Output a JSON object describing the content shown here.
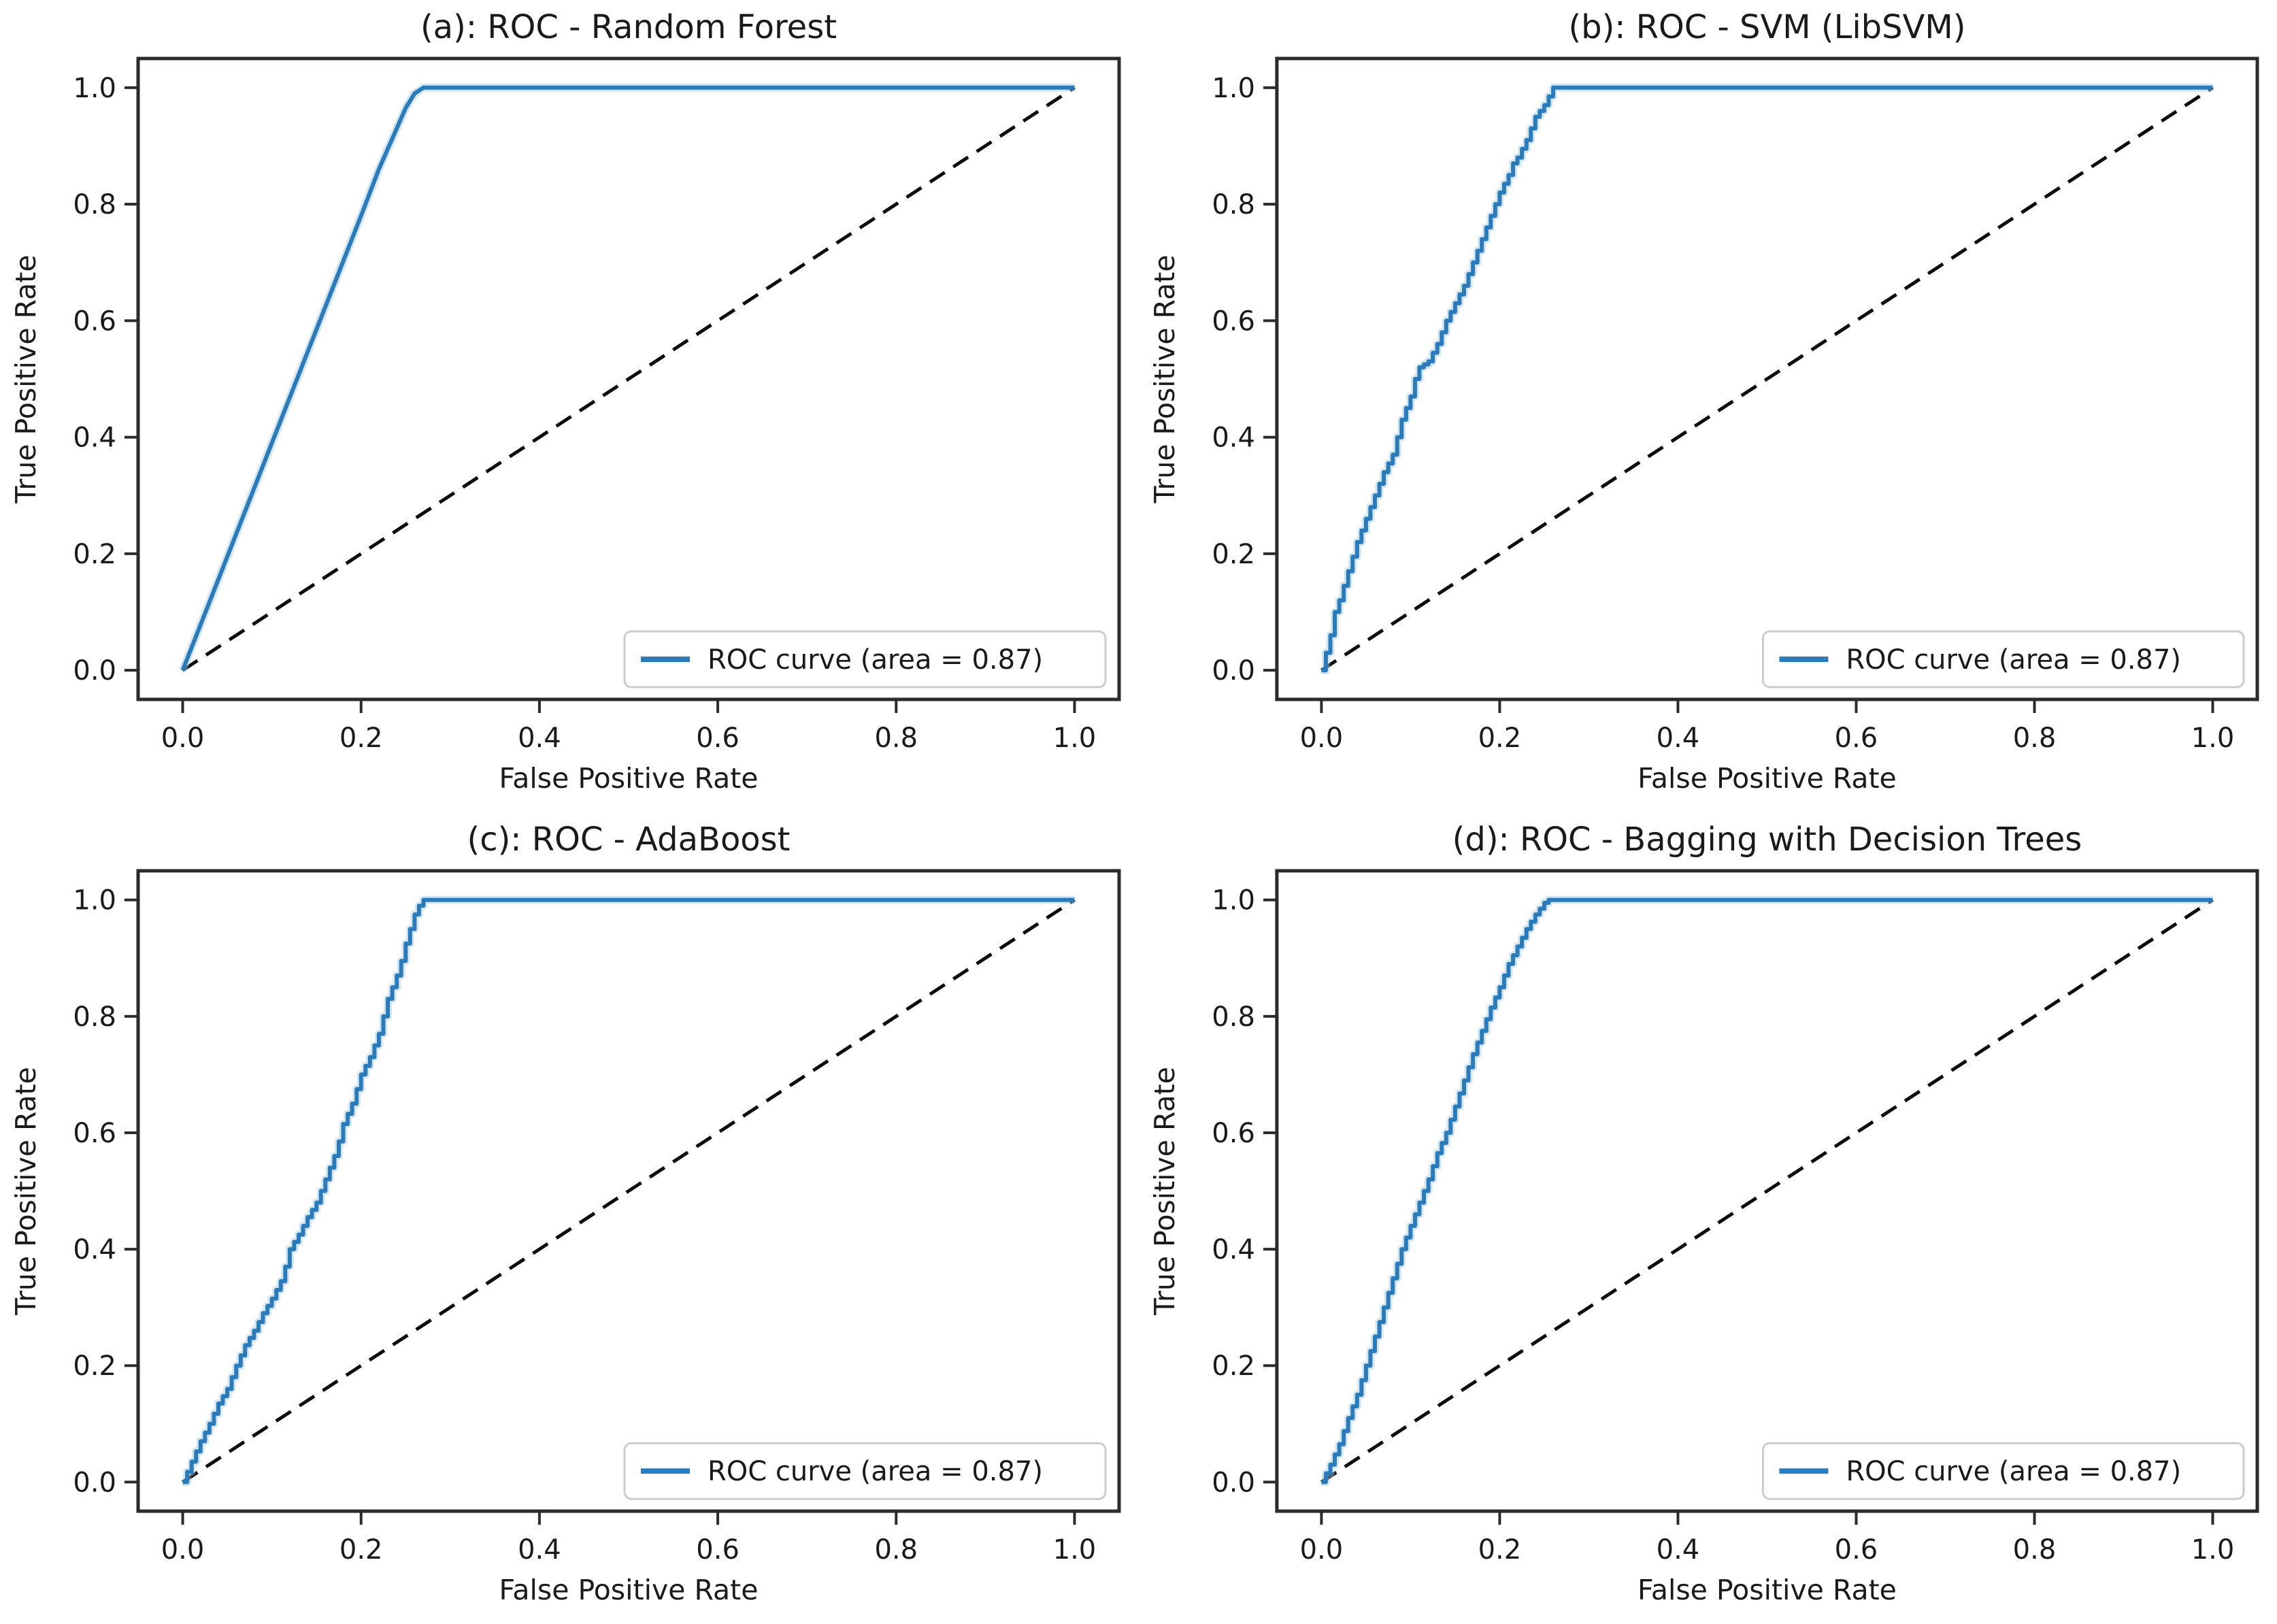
{
  "figure": {
    "background": "#ffffff",
    "rows": 2,
    "cols": 2
  },
  "style": {
    "curve_color": "#2b7bba",
    "curve_halo_color": "#9ec7e2",
    "diagonal_color": "#0d0d0d",
    "spine_color": "#2b2b2b",
    "tick_color": "#2b2b2b",
    "text_color": "#1a1a1a",
    "legend_border_color": "#cccccc",
    "legend_fill": "#ffffff"
  },
  "axes": {
    "xlabel": "False Positive Rate",
    "ylabel": "True Positive Rate",
    "xticks": [
      "0.0",
      "0.2",
      "0.4",
      "0.6",
      "0.8",
      "1.0"
    ],
    "yticks": [
      "0.0",
      "0.2",
      "0.4",
      "0.6",
      "0.8",
      "1.0"
    ],
    "tick_values": [
      0.0,
      0.2,
      0.4,
      0.6,
      0.8,
      1.0
    ],
    "xlim": [
      -0.05,
      1.05
    ],
    "ylim": [
      -0.05,
      1.05
    ],
    "grid": false,
    "legend_position": "lower right"
  },
  "chart_data": [
    {
      "id": "a",
      "type": "line",
      "title": "(a): ROC - Random Forest",
      "legend_label": "ROC curve (area = 0.87)",
      "auc": 0.87,
      "curve_style": "linear",
      "xlabel": "False Positive Rate",
      "ylabel": "True Positive Rate",
      "roc_points": [
        [
          0,
          0
        ],
        [
          0.05,
          0.195
        ],
        [
          0.1,
          0.39
        ],
        [
          0.15,
          0.585
        ],
        [
          0.2,
          0.78
        ],
        [
          0.22,
          0.86
        ],
        [
          0.24,
          0.93
        ],
        [
          0.25,
          0.965
        ],
        [
          0.26,
          0.99
        ],
        [
          0.27,
          1.0
        ],
        [
          1,
          1
        ]
      ],
      "diagonal": [
        [
          0,
          0
        ],
        [
          1,
          1
        ]
      ]
    },
    {
      "id": "b",
      "type": "line",
      "title": "(b): ROC - SVM (LibSVM)",
      "legend_label": "ROC curve (area = 0.87)",
      "auc": 0.87,
      "curve_style": "steps",
      "xlabel": "False Positive Rate",
      "ylabel": "True Positive Rate",
      "roc_points": [
        [
          0,
          0
        ],
        [
          0.005,
          0.03
        ],
        [
          0.01,
          0.06
        ],
        [
          0.015,
          0.1
        ],
        [
          0.02,
          0.12
        ],
        [
          0.03,
          0.17
        ],
        [
          0.04,
          0.22
        ],
        [
          0.05,
          0.26
        ],
        [
          0.055,
          0.28
        ],
        [
          0.06,
          0.3
        ],
        [
          0.07,
          0.34
        ],
        [
          0.08,
          0.37
        ],
        [
          0.09,
          0.43
        ],
        [
          0.1,
          0.47
        ],
        [
          0.105,
          0.5
        ],
        [
          0.11,
          0.52
        ],
        [
          0.12,
          0.53
        ],
        [
          0.13,
          0.56
        ],
        [
          0.14,
          0.6
        ],
        [
          0.15,
          0.63
        ],
        [
          0.16,
          0.66
        ],
        [
          0.17,
          0.7
        ],
        [
          0.18,
          0.74
        ],
        [
          0.19,
          0.78
        ],
        [
          0.2,
          0.82
        ],
        [
          0.21,
          0.85
        ],
        [
          0.215,
          0.87
        ],
        [
          0.22,
          0.88
        ],
        [
          0.23,
          0.91
        ],
        [
          0.24,
          0.95
        ],
        [
          0.25,
          0.97
        ],
        [
          0.255,
          0.985
        ],
        [
          0.26,
          1.0
        ],
        [
          1,
          1
        ]
      ],
      "diagonal": [
        [
          0,
          0
        ],
        [
          1,
          1
        ]
      ]
    },
    {
      "id": "c",
      "type": "line",
      "title": "(c): ROC - AdaBoost",
      "legend_label": "ROC curve (area = 0.87)",
      "auc": 0.87,
      "curve_style": "steps",
      "xlabel": "False Positive Rate",
      "ylabel": "True Positive Rate",
      "roc_points": [
        [
          0,
          0
        ],
        [
          0.01,
          0.035
        ],
        [
          0.02,
          0.07
        ],
        [
          0.03,
          0.1
        ],
        [
          0.04,
          0.135
        ],
        [
          0.05,
          0.16
        ],
        [
          0.06,
          0.2
        ],
        [
          0.07,
          0.235
        ],
        [
          0.08,
          0.26
        ],
        [
          0.09,
          0.29
        ],
        [
          0.1,
          0.315
        ],
        [
          0.11,
          0.345
        ],
        [
          0.115,
          0.37
        ],
        [
          0.12,
          0.4
        ],
        [
          0.13,
          0.425
        ],
        [
          0.14,
          0.455
        ],
        [
          0.15,
          0.48
        ],
        [
          0.16,
          0.52
        ],
        [
          0.17,
          0.56
        ],
        [
          0.175,
          0.585
        ],
        [
          0.18,
          0.615
        ],
        [
          0.19,
          0.65
        ],
        [
          0.195,
          0.675
        ],
        [
          0.2,
          0.7
        ],
        [
          0.21,
          0.73
        ],
        [
          0.22,
          0.77
        ],
        [
          0.225,
          0.8
        ],
        [
          0.23,
          0.83
        ],
        [
          0.235,
          0.85
        ],
        [
          0.24,
          0.87
        ],
        [
          0.245,
          0.895
        ],
        [
          0.25,
          0.925
        ],
        [
          0.255,
          0.95
        ],
        [
          0.26,
          0.975
        ],
        [
          0.265,
          0.99
        ],
        [
          0.27,
          1.0
        ],
        [
          1,
          1
        ]
      ],
      "diagonal": [
        [
          0,
          0
        ],
        [
          1,
          1
        ]
      ]
    },
    {
      "id": "d",
      "type": "line",
      "title": "(d): ROC - Bagging with Decision Trees",
      "legend_label": "ROC curve (area = 0.87)",
      "auc": 0.87,
      "curve_style": "steps",
      "xlabel": "False Positive Rate",
      "ylabel": "True Positive Rate",
      "roc_points": [
        [
          0,
          0
        ],
        [
          0.01,
          0.03
        ],
        [
          0.02,
          0.065
        ],
        [
          0.03,
          0.11
        ],
        [
          0.04,
          0.15
        ],
        [
          0.05,
          0.2
        ],
        [
          0.06,
          0.25
        ],
        [
          0.07,
          0.3
        ],
        [
          0.08,
          0.35
        ],
        [
          0.09,
          0.4
        ],
        [
          0.095,
          0.42
        ],
        [
          0.1,
          0.44
        ],
        [
          0.11,
          0.48
        ],
        [
          0.115,
          0.5
        ],
        [
          0.12,
          0.52
        ],
        [
          0.13,
          0.565
        ],
        [
          0.14,
          0.6
        ],
        [
          0.15,
          0.645
        ],
        [
          0.16,
          0.69
        ],
        [
          0.17,
          0.735
        ],
        [
          0.18,
          0.775
        ],
        [
          0.19,
          0.815
        ],
        [
          0.2,
          0.85
        ],
        [
          0.21,
          0.89
        ],
        [
          0.22,
          0.92
        ],
        [
          0.23,
          0.95
        ],
        [
          0.24,
          0.975
        ],
        [
          0.25,
          0.995
        ],
        [
          0.255,
          1.0
        ],
        [
          1,
          1
        ]
      ],
      "diagonal": [
        [
          0,
          0
        ],
        [
          1,
          1
        ]
      ]
    }
  ]
}
